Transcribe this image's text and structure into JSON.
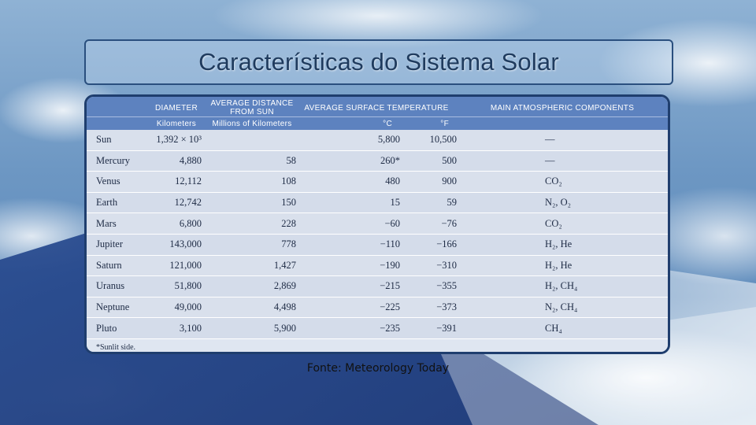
{
  "title": "Características do Sistema Solar",
  "table": {
    "group_headers": {
      "diameter": "DIAMETER",
      "distance": "AVERAGE DISTANCE FROM SUN",
      "temperature": "AVERAGE SURFACE TEMPERATURE",
      "atmosphere": "MAIN ATMOSPHERIC COMPONENTS"
    },
    "unit_headers": {
      "diameter": "Kilometers",
      "distance": "Millions of Kilometers",
      "celsius": "°C",
      "fahrenheit": "°F"
    },
    "rows": [
      {
        "name": "Sun",
        "diameter": "1,392 × 10³",
        "distance": "",
        "tc": "5,800",
        "tf": "10,500",
        "atm": "—"
      },
      {
        "name": "Mercury",
        "diameter": "4,880",
        "distance": "58",
        "tc": "260*",
        "tf": "500",
        "atm": "—"
      },
      {
        "name": "Venus",
        "diameter": "12,112",
        "distance": "108",
        "tc": "480",
        "tf": "900",
        "atm": "CO₂"
      },
      {
        "name": "Earth",
        "diameter": "12,742",
        "distance": "150",
        "tc": "15",
        "tf": "59",
        "atm": "N₂, O₂"
      },
      {
        "name": "Mars",
        "diameter": "6,800",
        "distance": "228",
        "tc": "−60",
        "tf": "−76",
        "atm": "CO₂"
      },
      {
        "name": "Jupiter",
        "diameter": "143,000",
        "distance": "778",
        "tc": "−110",
        "tf": "−166",
        "atm": "H₂, He"
      },
      {
        "name": "Saturn",
        "diameter": "121,000",
        "distance": "1,427",
        "tc": "−190",
        "tf": "−310",
        "atm": "H₂, He"
      },
      {
        "name": "Uranus",
        "diameter": "51,800",
        "distance": "2,869",
        "tc": "−215",
        "tf": "−355",
        "atm": "H₂, CH₄"
      },
      {
        "name": "Neptune",
        "diameter": "49,000",
        "distance": "4,498",
        "tc": "−225",
        "tf": "−373",
        "atm": "N₂, CH₄"
      },
      {
        "name": "Pluto",
        "diameter": "3,100",
        "distance": "5,900",
        "tc": "−235",
        "tf": "−391",
        "atm": "CH₄"
      }
    ],
    "footnote": "*Sunlit side."
  },
  "source": "Fonte: Meteorology Today",
  "colors": {
    "header_bg": "#5d82bf",
    "frame_border": "#1f3e6e",
    "title_color": "#1f3b5e"
  }
}
